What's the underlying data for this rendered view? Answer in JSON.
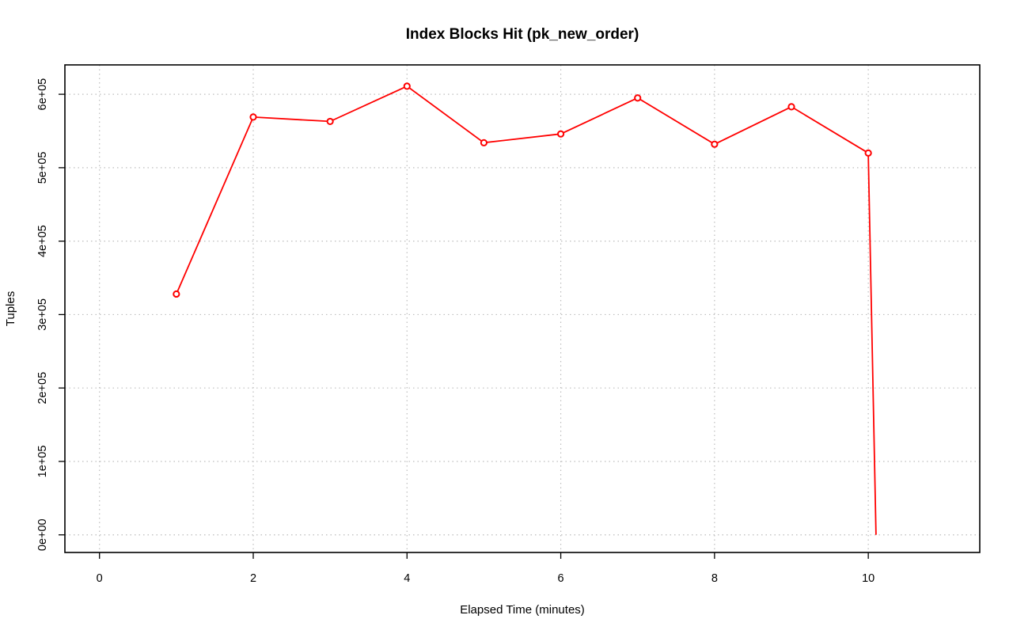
{
  "chart_data": {
    "type": "line",
    "title": "Index Blocks Hit (pk_new_order)",
    "xlabel": "Elapsed Time (minutes)",
    "ylabel": "Tuples",
    "xlim": [
      -0.45,
      11.45
    ],
    "ylim": [
      -24000,
      640000
    ],
    "x_ticks": [
      0,
      2,
      4,
      6,
      8,
      10
    ],
    "x_tick_labels": [
      "0",
      "2",
      "4",
      "6",
      "8",
      "10"
    ],
    "y_ticks": [
      0,
      100000,
      200000,
      300000,
      400000,
      500000,
      600000
    ],
    "y_tick_labels": [
      "0e+00",
      "1e+05",
      "2e+05",
      "3e+05",
      "4e+05",
      "5e+05",
      "6e+05"
    ],
    "grid": true,
    "series": [
      {
        "color": "#ff0000",
        "x": [
          1,
          2,
          3,
          4,
          5,
          6,
          7,
          8,
          9,
          10,
          10.1
        ],
        "y": [
          328000,
          569000,
          563000,
          611000,
          534000,
          546000,
          595000,
          532000,
          583000,
          520000,
          0
        ],
        "markers": [
          true,
          true,
          true,
          true,
          true,
          true,
          true,
          true,
          true,
          true,
          false
        ]
      }
    ]
  }
}
